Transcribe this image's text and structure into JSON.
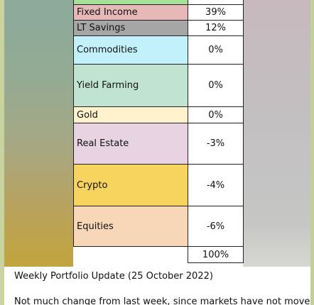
{
  "portfolio": {
    "top_row_color": "#a6e19a",
    "rows": [
      {
        "name": "Fixed Income",
        "value": "39%",
        "color": "#e6b8b7",
        "height": 22
      },
      {
        "name": "LT Savings",
        "value": "12%",
        "color": "#a6a6a6",
        "height": 22
      },
      {
        "name": "Commodities",
        "value": "0%",
        "color": "#c3f1fb",
        "height": 40
      },
      {
        "name": "Yield Farming",
        "value": "0%",
        "color": "#c1e3d1",
        "height": 60
      },
      {
        "name": "Gold",
        "value": "0%",
        "color": "#fff2cc",
        "height": 23
      },
      {
        "name": "Real Estate",
        "value": "-3%",
        "color": "#e7d3e1",
        "height": 58
      },
      {
        "name": "Crypto",
        "value": "-4%",
        "color": "#f7d45e",
        "height": 59
      },
      {
        "name": "Equities",
        "value": "-6%",
        "color": "#f8d6b8",
        "height": 57
      }
    ],
    "total": "100%"
  },
  "message": {
    "title": "Weekly Portfolio Update (25 October 2022)",
    "body_start": "Not much change from last week, since markets have not moved"
  }
}
